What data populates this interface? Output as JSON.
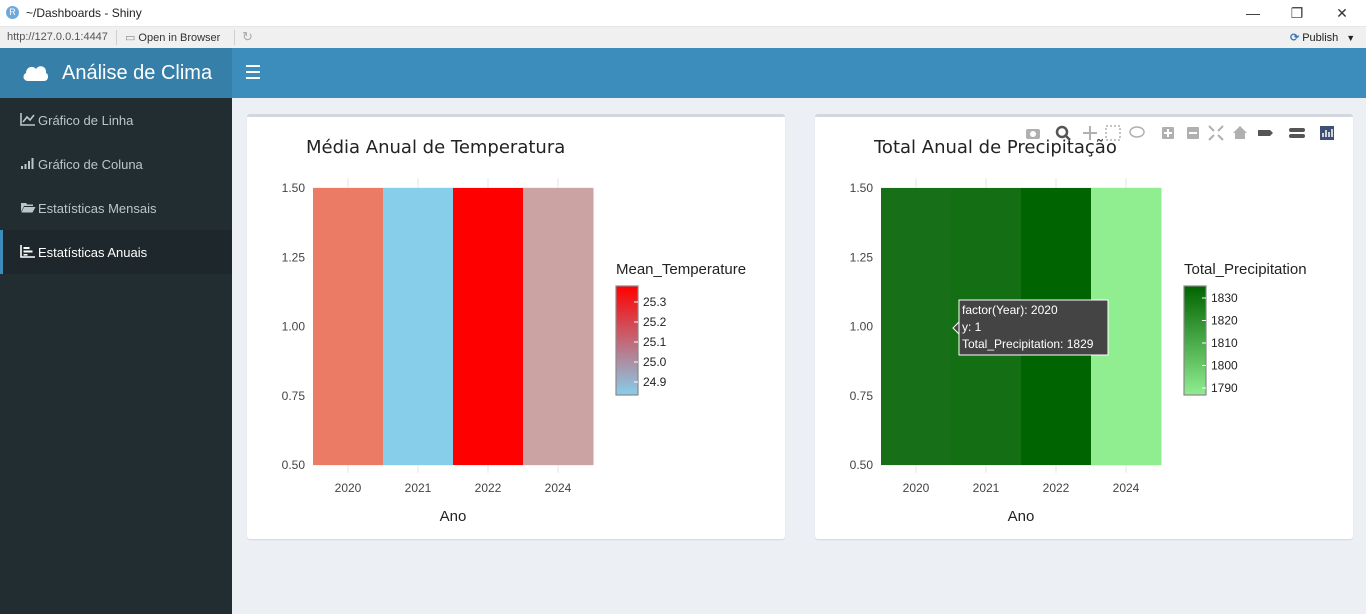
{
  "window": {
    "title": "~/Dashboards - Shiny",
    "minimize": "—",
    "maximize": "❐",
    "close": "✕"
  },
  "address_bar": {
    "url": "http://127.0.0.1:4447",
    "open_in_browser": "Open in Browser",
    "publish": "Publish"
  },
  "header": {
    "app_title": "Análise de Clima",
    "logo_icon": "cloud-icon",
    "toggle_icon": "hamburger-icon"
  },
  "sidebar": {
    "items": [
      {
        "label": "Gráfico de Linha",
        "icon": "line-chart-icon",
        "active": false
      },
      {
        "label": "Gráfico de Coluna",
        "icon": "signal-bars-icon",
        "active": false
      },
      {
        "label": "Estatísticas Mensais",
        "icon": "folder-open-icon",
        "active": false
      },
      {
        "label": "Estatísticas Anuais",
        "icon": "bar-chart-icon",
        "active": true
      }
    ]
  },
  "chart_data": [
    {
      "type": "heatmap",
      "title": "Média Anual de Temperatura",
      "xlabel": "Ano",
      "ylabel": "",
      "categories": [
        "2020",
        "2021",
        "2022",
        "2024"
      ],
      "values": [
        25.12,
        24.87,
        25.35,
        24.98
      ],
      "ylim": [
        0.5,
        1.5
      ],
      "yticks": [
        "0.50",
        "0.75",
        "1.00",
        "1.25",
        "1.50"
      ],
      "cell_colors": [
        "#ec7b66",
        "#87ceeb",
        "#ff0000",
        "#cca3a3"
      ],
      "legend": {
        "title": "Mean_Temperature",
        "ticks": [
          "25.3",
          "25.2",
          "25.1",
          "25.0",
          "24.9"
        ],
        "color_low": "#87ceeb",
        "color_high": "#ff0000",
        "placement": "right"
      },
      "grid": true
    },
    {
      "type": "heatmap",
      "title": "Total Anual de Precipitação",
      "xlabel": "Ano",
      "ylabel": "",
      "categories": [
        "2020",
        "2021",
        "2022",
        "2024"
      ],
      "values": [
        1829,
        1831,
        1835,
        1787
      ],
      "ylim": [
        0.5,
        1.5
      ],
      "yticks": [
        "0.50",
        "0.75",
        "1.00",
        "1.25",
        "1.50"
      ],
      "cell_colors": [
        "#177017",
        "#146e14",
        "#006400",
        "#90ee90"
      ],
      "legend": {
        "title": "Total_Precipitation",
        "ticks": [
          "1830",
          "1820",
          "1810",
          "1800",
          "1790"
        ],
        "color_low": "#90ee90",
        "color_high": "#006400",
        "placement": "right"
      },
      "grid": true,
      "tooltip": {
        "lines": [
          "factor(Year): 2020",
          "y: 1",
          "Total_Precipitation: 1829"
        ]
      }
    }
  ],
  "modebar_icons": [
    "camera-icon",
    "zoom-icon",
    "pan-icon",
    "box-select-icon",
    "lasso-icon",
    "zoom-in-icon",
    "zoom-out-icon",
    "autoscale-icon",
    "home-icon",
    "spike-lines-icon",
    "compare-hover-icon",
    "plotly-logo-icon"
  ]
}
